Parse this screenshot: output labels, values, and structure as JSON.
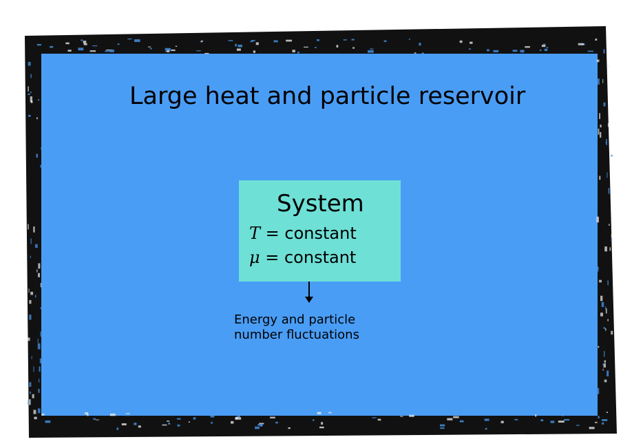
{
  "colors": {
    "reservoir": "#4a9df5",
    "frame": "#111111",
    "system_box": "#6ee0d6",
    "text": "#000000"
  },
  "reservoir": {
    "title": "Large heat and particle reservoir"
  },
  "system": {
    "title": "System",
    "eq1": {
      "symbol": "T",
      "op": " = ",
      "value": "constant"
    },
    "eq2": {
      "symbol": "μ",
      "op": " = ",
      "value": "constant"
    }
  },
  "exchange": {
    "line1": "Energy and particle",
    "line2": "number fluctuations"
  }
}
